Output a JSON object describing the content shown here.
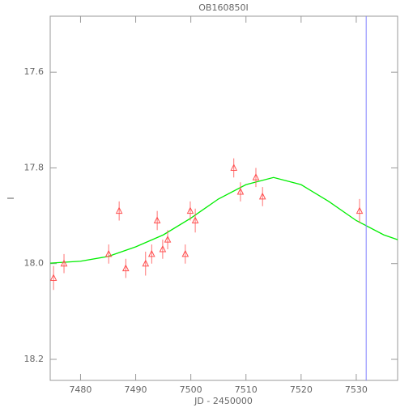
{
  "chart_data": {
    "type": "scatter",
    "title": "OB160850I",
    "x_label": "JD - 2450000",
    "y_label": "I",
    "x": [
      7475.1,
      7477.0,
      7485.1,
      7487.0,
      7488.2,
      7491.8,
      7492.9,
      7493.9,
      7494.9,
      7495.8,
      7499.0,
      7499.9,
      7500.8,
      7507.8,
      7509.0,
      7511.8,
      7513.0,
      7530.6
    ],
    "values": [
      18.03,
      18.0,
      17.98,
      17.89,
      18.01,
      18.0,
      17.98,
      17.91,
      17.97,
      17.95,
      17.98,
      17.89,
      17.91,
      17.8,
      17.85,
      17.82,
      17.86,
      17.89
    ],
    "errors": [
      0.025,
      0.02,
      0.02,
      0.02,
      0.02,
      0.025,
      0.02,
      0.02,
      0.02,
      0.02,
      0.02,
      0.02,
      0.025,
      0.02,
      0.02,
      0.02,
      0.02,
      0.025
    ],
    "color": "#ff5050",
    "model": {
      "x": [
        7474.5,
        7480,
        7485,
        7490,
        7495,
        7500,
        7505,
        7510,
        7515,
        7520,
        7525,
        7530,
        7535,
        7537.5
      ],
      "values": [
        17.999,
        17.995,
        17.985,
        17.965,
        17.94,
        17.905,
        17.865,
        17.835,
        17.82,
        17.835,
        17.87,
        17.91,
        17.94,
        17.95
      ],
      "color": "#00ee00"
    },
    "vline": {
      "x": 7531.8,
      "color": "#8080ff"
    },
    "xlim": [
      7474.5,
      7537.5
    ],
    "xticks": [
      7480,
      7490,
      7500,
      7510,
      7520,
      7530
    ],
    "ylim": [
      18.244,
      17.483
    ],
    "yticks": [
      {
        "value": 17.6,
        "label": "17.6"
      },
      {
        "value": 17.8,
        "label": "17.8"
      },
      {
        "value": 18.0,
        "label": "18.0"
      },
      {
        "value": 18.2,
        "label": "18.2"
      }
    ]
  }
}
